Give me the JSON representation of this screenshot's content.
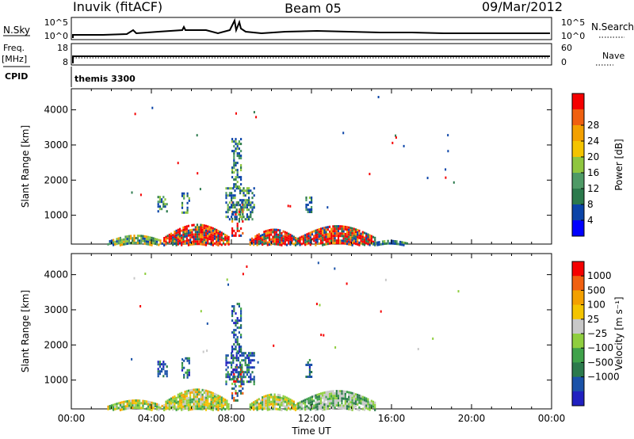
{
  "header": {
    "station": "Inuvik (fitACF)",
    "beam": "Beam 05",
    "date": "09/Mar/2012"
  },
  "top_panels": {
    "nsky_label": "N.Sky",
    "nsky_tick_hi": "10^5",
    "nsky_tick_lo": "10^0",
    "nsearch_label": "N.Search",
    "nsearch_tick_hi": "10^5",
    "nsearch_tick_lo": "10^0",
    "freq_label": "Freq.",
    "freq_unit": "[MHz]",
    "freq_tick_hi": "18",
    "freq_tick_lo": "8",
    "nave_label": "Nave",
    "nave_tick_hi": "60",
    "nave_tick_lo": "0",
    "cpid_label": "CPID",
    "cpid_value": "themis 3300"
  },
  "chart_data": [
    {
      "type": "heatmap",
      "title": "Power",
      "xlabel": "Time UT",
      "ylabel": "Slant Range [km]",
      "xlim": [
        "00:00",
        "24:00"
      ],
      "ylim": [
        180,
        4600
      ],
      "x_tick_labels": [
        "00:00",
        "04:00",
        "08:00",
        "12:00",
        "16:00",
        "20:00",
        "00:00"
      ],
      "y_ticks": [
        1000,
        2000,
        3000,
        4000
      ],
      "colorbar": {
        "label": "Power [dB]",
        "ticks": [
          "4",
          "8",
          "12",
          "16",
          "20",
          "24",
          "28"
        ],
        "colors": [
          "#0000ff",
          "#0b44a8",
          "#2b7a4c",
          "#4e9a66",
          "#8fc63f",
          "#f4c400",
          "#f3a000",
          "#f06010",
          "#f50000"
        ]
      },
      "regions": [
        {
          "t0": 1.8,
          "t1": 4.6,
          "r0": 180,
          "r1": 450,
          "level": "mid"
        },
        {
          "t0": 4.6,
          "t1": 7.9,
          "r0": 180,
          "r1": 760,
          "level": "high"
        },
        {
          "t0": 8.0,
          "t1": 8.6,
          "r0": 400,
          "r1": 1400,
          "level": "high"
        },
        {
          "t0": 8.9,
          "t1": 11.3,
          "r0": 180,
          "r1": 620,
          "level": "high"
        },
        {
          "t0": 11.3,
          "t1": 15.2,
          "r0": 180,
          "r1": 720,
          "level": "high"
        },
        {
          "t0": 15.0,
          "t1": 16.8,
          "r0": 180,
          "r1": 300,
          "level": "low"
        },
        {
          "t0": 4.3,
          "t1": 4.8,
          "r0": 1100,
          "r1": 1550,
          "level": "low"
        },
        {
          "t0": 5.5,
          "t1": 5.9,
          "r0": 1100,
          "r1": 1650,
          "level": "low"
        },
        {
          "t0": 7.7,
          "t1": 9.1,
          "r0": 900,
          "r1": 1800,
          "level": "low"
        },
        {
          "t0": 8.0,
          "t1": 8.5,
          "r0": 1800,
          "r1": 3200,
          "level": "low"
        },
        {
          "t0": 11.7,
          "t1": 12.0,
          "r0": 1100,
          "r1": 1600,
          "level": "low"
        }
      ]
    },
    {
      "type": "heatmap",
      "title": "Velocity",
      "xlabel": "Time UT",
      "ylabel": "Slant Range [km]",
      "xlim": [
        "00:00",
        "24:00"
      ],
      "ylim": [
        180,
        4600
      ],
      "x_tick_labels": [
        "00:00",
        "04:00",
        "08:00",
        "12:00",
        "16:00",
        "20:00",
        "00:00"
      ],
      "y_ticks": [
        1000,
        2000,
        3000,
        4000
      ],
      "colorbar": {
        "label": "Velocity [m s⁻¹]",
        "ticks": [
          "1000",
          "500",
          "100",
          "25",
          "−25",
          "−100",
          "−500",
          "−1000"
        ],
        "colors": [
          "#2020c0",
          "#1a52a8",
          "#2b7a4c",
          "#3fa24a",
          "#8fce3f",
          "#c8c8c8",
          "#f4c400",
          "#f3a000",
          "#f06010",
          "#f50000"
        ]
      },
      "regions": [
        {
          "t0": 1.8,
          "t1": 4.6,
          "r0": 180,
          "r1": 450,
          "level": "green"
        },
        {
          "t0": 4.6,
          "t1": 7.9,
          "r0": 180,
          "r1": 760,
          "level": "green"
        },
        {
          "t0": 8.0,
          "t1": 8.6,
          "r0": 400,
          "r1": 1400,
          "level": "mix"
        },
        {
          "t0": 8.9,
          "t1": 11.3,
          "r0": 180,
          "r1": 620,
          "level": "green"
        },
        {
          "t0": 11.3,
          "t1": 15.2,
          "r0": 180,
          "r1": 720,
          "level": "grey"
        },
        {
          "t0": 4.3,
          "t1": 4.8,
          "r0": 1100,
          "r1": 1550,
          "level": "blue"
        },
        {
          "t0": 5.5,
          "t1": 5.9,
          "r0": 1100,
          "r1": 1650,
          "level": "blue"
        },
        {
          "t0": 7.7,
          "t1": 9.1,
          "r0": 900,
          "r1": 1800,
          "level": "blue"
        },
        {
          "t0": 8.0,
          "t1": 8.5,
          "r0": 1800,
          "r1": 3200,
          "level": "blue"
        },
        {
          "t0": 11.7,
          "t1": 12.0,
          "r0": 1100,
          "r1": 1600,
          "level": "blue"
        }
      ]
    }
  ]
}
